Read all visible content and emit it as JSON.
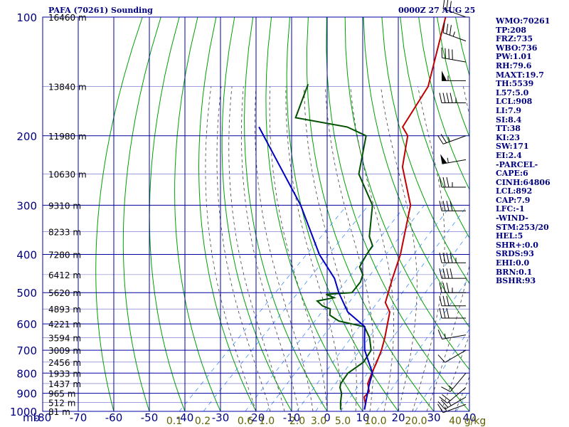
{
  "header": {
    "title": "PAFA (70261) Sounding",
    "time": "0000Z 27 AUG 25"
  },
  "indices": [
    "WMO:70261",
    "TP:208",
    "FRZ:735",
    "WBO:736",
    "PW:1.01",
    "RH:79.6",
    "MAXT:19.7",
    "TH:5539",
    "L57:5.0",
    "LCL:908",
    "LI:7.9",
    "SI:8.4",
    "TT:38",
    "KI:23",
    "SW:171",
    "EI:2.4",
    "-PARCEL-",
    "CAPE:6",
    "CINH:64806",
    "LCL:892",
    "CAP:7.9",
    "LFC:-1",
    "-WIND-",
    "STM:253/20",
    "HEL:5",
    "SHR+:0.0",
    "SRDS:93",
    "EHI:0.0",
    "BRN:0.1",
    "BSHR:93"
  ],
  "colors": {
    "grid": "#0000a0",
    "dry_adiabat": "#00a000",
    "moist_adiabat": "#404040",
    "mixing_ratio": "#4090ff",
    "temperature": "#c00000",
    "dewpoint": "#005000",
    "parcel": "#0000c0",
    "labels": "#000080",
    "mixing_labels": "#606000"
  },
  "chart_data": {
    "type": "line",
    "title": "PAFA (70261) Sounding",
    "pressure_unit": "mb",
    "pressure_levels": [
      100,
      200,
      300,
      400,
      500,
      600,
      700,
      800,
      900,
      1000
    ],
    "temperature_ticks": [
      -80,
      -70,
      -60,
      -50,
      -40,
      -30,
      -20,
      -10,
      0,
      10,
      20,
      30,
      40
    ],
    "x_range": [
      -80,
      40
    ],
    "y_range": [
      100,
      1000
    ],
    "height_labels": [
      {
        "p": 100,
        "label": "16460 m"
      },
      {
        "p": 150,
        "label": "13840 m"
      },
      {
        "p": 200,
        "label": "11980 m"
      },
      {
        "p": 250,
        "label": "10630 m"
      },
      {
        "p": 300,
        "label": "9310 m"
      },
      {
        "p": 350,
        "label": "8233 m"
      },
      {
        "p": 400,
        "label": "7280 m"
      },
      {
        "p": 450,
        "label": "6412 m"
      },
      {
        "p": 500,
        "label": "5620 m"
      },
      {
        "p": 550,
        "label": "4893 m"
      },
      {
        "p": 600,
        "label": "4221 m"
      },
      {
        "p": 650,
        "label": "3594 m"
      },
      {
        "p": 700,
        "label": "3009 m"
      },
      {
        "p": 750,
        "label": "2456 m"
      },
      {
        "p": 800,
        "label": "1933 m"
      },
      {
        "p": 850,
        "label": "1437 m"
      },
      {
        "p": 900,
        "label": "965 m"
      },
      {
        "p": 950,
        "label": "512 m"
      },
      {
        "p": 1000,
        "label": "81 m"
      }
    ],
    "mixing_ratio_labels": [
      "0.1",
      "0.2",
      "0.6",
      "1.0",
      "2.0",
      "3.0",
      "5.0",
      "10.0",
      "20.0",
      "40",
      "g/kg"
    ],
    "series": [
      {
        "name": "temperature",
        "points": [
          [
            100,
            -77.5
          ],
          [
            150,
            -62.9
          ],
          [
            190,
            -58.7
          ],
          [
            200,
            -54.8
          ],
          [
            240,
            -47.5
          ],
          [
            300,
            -34.5
          ],
          [
            400,
            -23.5
          ],
          [
            460,
            -19.0
          ],
          [
            530,
            -14.2
          ],
          [
            560,
            -10.3
          ],
          [
            650,
            -4.5
          ],
          [
            700,
            -1.9
          ],
          [
            750,
            0.1
          ],
          [
            800,
            1.8
          ],
          [
            850,
            3.6
          ],
          [
            890,
            6.2
          ],
          [
            920,
            6.4
          ],
          [
            960,
            8.8
          ],
          [
            990,
            10.0
          ]
        ]
      },
      {
        "name": "dewpoint",
        "points": [
          [
            148,
            -97.3
          ],
          [
            180,
            -91.4
          ],
          [
            190,
            -74.3
          ],
          [
            200,
            -66.5
          ],
          [
            250,
            -57.8
          ],
          [
            300,
            -45.2
          ],
          [
            360,
            -37.3
          ],
          [
            380,
            -33.8
          ],
          [
            400,
            -33.0
          ],
          [
            430,
            -31.5
          ],
          [
            450,
            -28.4
          ],
          [
            470,
            -27.0
          ],
          [
            500,
            -26.4
          ],
          [
            505,
            -33.2
          ],
          [
            515,
            -30.0
          ],
          [
            525,
            -33.8
          ],
          [
            540,
            -31.0
          ],
          [
            550,
            -27.9
          ],
          [
            570,
            -26.3
          ],
          [
            590,
            -22.1
          ],
          [
            610,
            -13.3
          ],
          [
            650,
            -8.8
          ],
          [
            700,
            -4.8
          ],
          [
            750,
            -3.6
          ],
          [
            800,
            -4.9
          ],
          [
            850,
            -4.0
          ],
          [
            870,
            -3.1
          ],
          [
            900,
            -1.0
          ],
          [
            950,
            1.3
          ],
          [
            990,
            3.3
          ]
        ]
      },
      {
        "name": "parcel",
        "points": [
          [
            190,
            -99.1
          ],
          [
            300,
            -65.4
          ],
          [
            400,
            -46.3
          ],
          [
            460,
            -35.3
          ],
          [
            500,
            -30.1
          ],
          [
            560,
            -22.1
          ],
          [
            610,
            -13.2
          ],
          [
            660,
            -9.5
          ],
          [
            700,
            -6.6
          ],
          [
            800,
            2.0
          ],
          [
            860,
            4.5
          ],
          [
            990,
            10.0
          ]
        ]
      }
    ],
    "wind_barbs": [
      {
        "p": 100,
        "dir": 290,
        "kt": 30
      },
      {
        "p": 115,
        "dir": 290,
        "kt": 35
      },
      {
        "p": 130,
        "dir": 280,
        "kt": 40
      },
      {
        "p": 145,
        "dir": 270,
        "kt": 55
      },
      {
        "p": 165,
        "dir": 270,
        "kt": 45
      },
      {
        "p": 200,
        "dir": 250,
        "kt": 25
      },
      {
        "p": 230,
        "dir": 260,
        "kt": 55
      },
      {
        "p": 270,
        "dir": 270,
        "kt": 35
      },
      {
        "p": 310,
        "dir": 270,
        "kt": 40
      },
      {
        "p": 420,
        "dir": 270,
        "kt": 45
      },
      {
        "p": 460,
        "dir": 270,
        "kt": 40
      },
      {
        "p": 500,
        "dir": 270,
        "kt": 35
      },
      {
        "p": 540,
        "dir": 270,
        "kt": 30
      },
      {
        "p": 580,
        "dir": 270,
        "kt": 30
      },
      {
        "p": 640,
        "dir": 260,
        "kt": 15
      },
      {
        "p": 700,
        "dir": 240,
        "kt": 10
      },
      {
        "p": 800,
        "dir": 220,
        "kt": 15
      },
      {
        "p": 870,
        "dir": 230,
        "kt": 20
      },
      {
        "p": 920,
        "dir": 240,
        "kt": 25
      },
      {
        "p": 960,
        "dir": 250,
        "kt": 15
      }
    ]
  }
}
